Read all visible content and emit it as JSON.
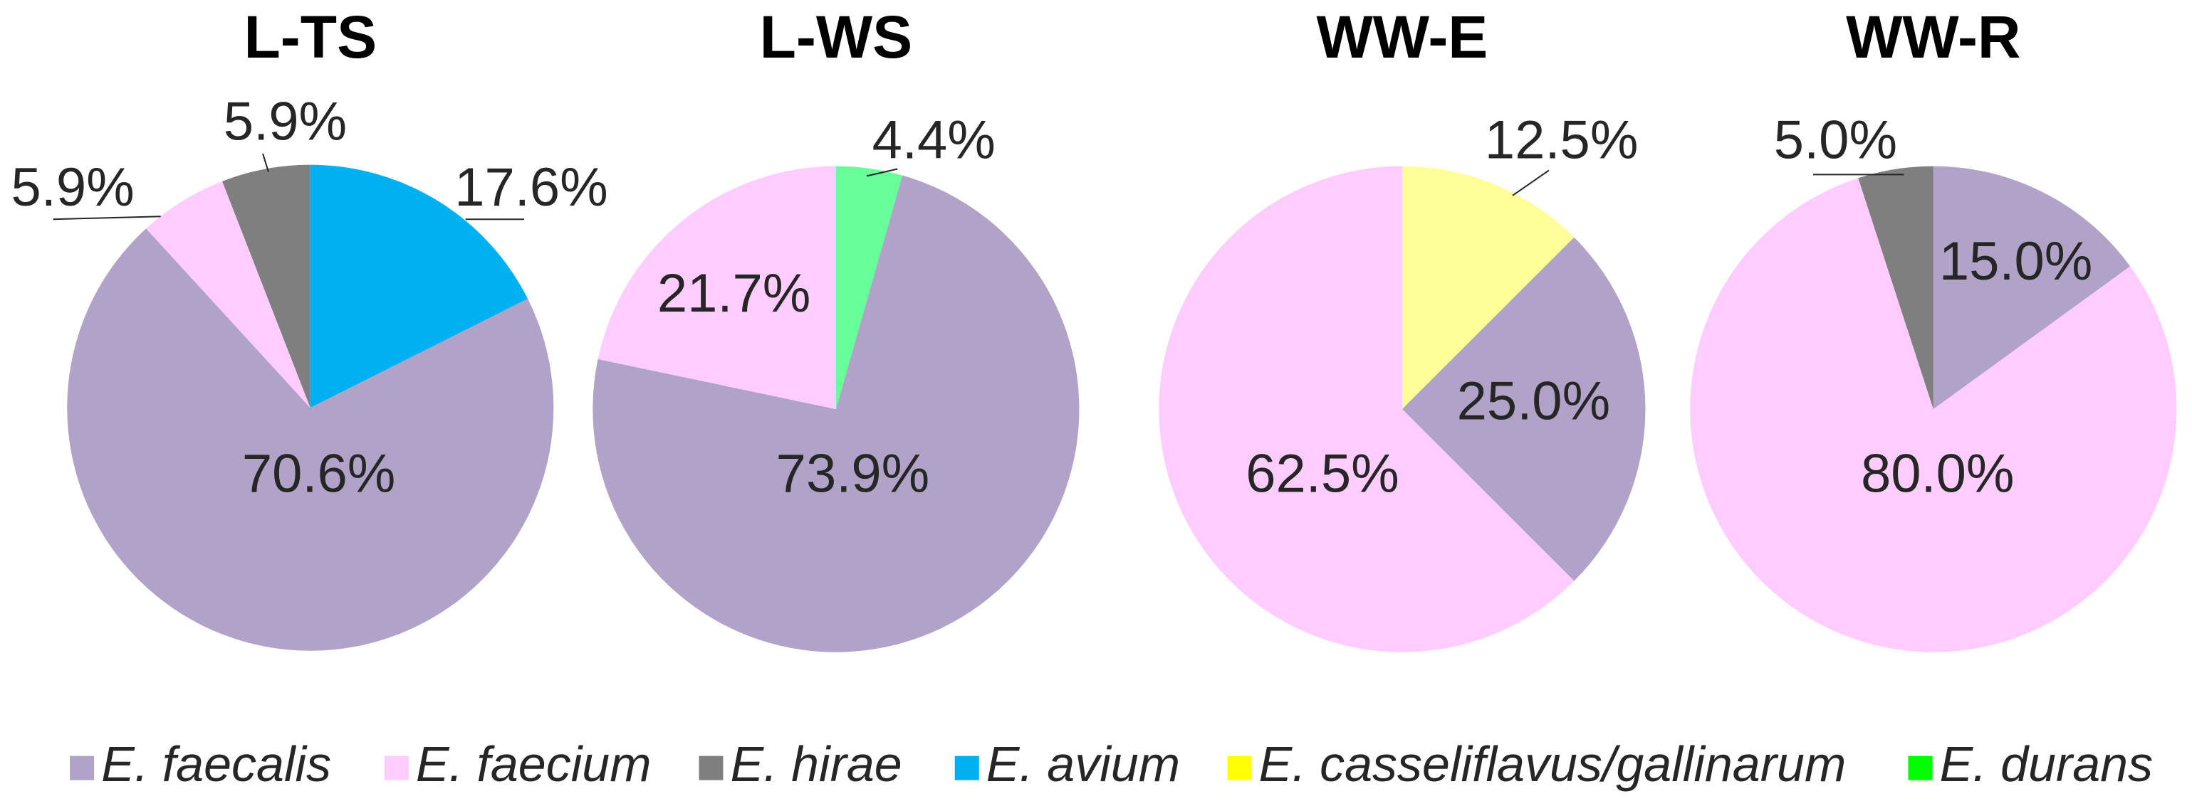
{
  "chart_data": [
    {
      "type": "pie",
      "title": "L-TS",
      "categories": [
        "E. avium",
        "E. faecalis",
        "E. faecium",
        "E. hirae"
      ],
      "values": [
        17.6,
        70.6,
        5.9,
        5.9
      ],
      "value_labels": [
        "17.6%",
        "70.6%",
        "5.9%",
        "5.9%"
      ],
      "colors": [
        "#00b0f0",
        "#b1a2c8",
        "#ffccff",
        "#7f7f7f"
      ]
    },
    {
      "type": "pie",
      "title": "L-WS",
      "categories": [
        "E. durans",
        "E. faecalis",
        "E. faecium"
      ],
      "values": [
        4.4,
        73.9,
        21.7
      ],
      "value_labels": [
        "4.4%",
        "73.9%",
        "21.7%"
      ],
      "colors": [
        "#66ff99",
        "#b1a2c8",
        "#ffccff"
      ]
    },
    {
      "type": "pie",
      "title": "WW-E",
      "categories": [
        "E. casseliflavus/gallinarum",
        "E. faecalis",
        "E. faecium"
      ],
      "values": [
        12.5,
        25.0,
        62.5
      ],
      "value_labels": [
        "12.5%",
        "25.0%",
        "62.5%"
      ],
      "colors": [
        "#ffff99",
        "#b1a2c8",
        "#ffccff"
      ]
    },
    {
      "type": "pie",
      "title": "WW-R",
      "categories": [
        "E. faecalis",
        "E. faecium",
        "E. hirae"
      ],
      "values": [
        15.0,
        80.0,
        5.0
      ],
      "value_labels": [
        "15.0%",
        "80.0%",
        "5.0%"
      ],
      "colors": [
        "#b1a2c8",
        "#ffccff",
        "#7f7f7f"
      ]
    }
  ],
  "legend": [
    {
      "name": "E. faecalis",
      "color": "#b1a2c8"
    },
    {
      "name": "E. faecium",
      "color": "#ffccff"
    },
    {
      "name": "E. hirae",
      "color": "#7f7f7f"
    },
    {
      "name": "E. avium",
      "color": "#00b0f0"
    },
    {
      "name": "E. casseliflavus/gallinarum",
      "color": "#ffff00"
    },
    {
      "name": "E. durans",
      "color": "#00ff00"
    }
  ]
}
